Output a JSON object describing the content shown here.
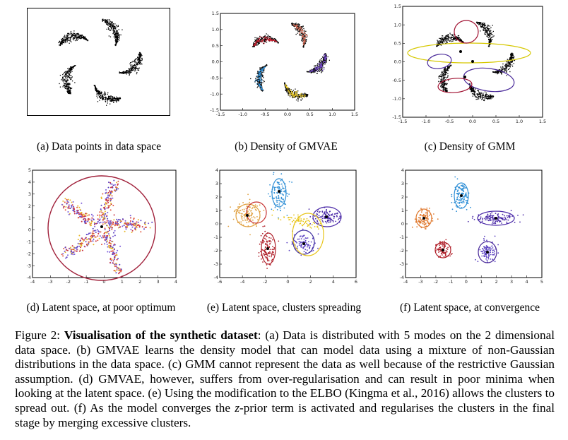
{
  "panels": [
    {
      "id": "a",
      "caption": "(a) Data points in data space"
    },
    {
      "id": "b",
      "caption": "(b) Density of GMVAE"
    },
    {
      "id": "c",
      "caption": "(c) Density of GMM"
    },
    {
      "id": "d",
      "caption": "(d) Latent space, at poor optimum"
    },
    {
      "id": "e",
      "caption": "(e) Latent space, clusters spreading"
    },
    {
      "id": "f",
      "caption": "(f) Latent space, at convergence"
    }
  ],
  "ticks": {
    "b_x": [
      "-1.5",
      "-1.0",
      "-0.5",
      "0.0",
      "0.5",
      "1.0",
      "1.5"
    ],
    "b_y": [
      "1.5",
      "1.0",
      "0.5",
      "0.0",
      "-0.5",
      "-1.0",
      "-1.5"
    ],
    "c_x": [
      "-1.5",
      "-1.0",
      "-0.5",
      "0.0",
      "0.5",
      "1.0",
      "1.5"
    ],
    "c_y": [
      "1.5",
      "1.0",
      "0.5",
      "0.0",
      "-0.5",
      "-1.0",
      "-1.5"
    ],
    "d_x": [
      "-4",
      "-3",
      "-2",
      "-1",
      "0",
      "1",
      "2",
      "3",
      "4"
    ],
    "d_y": [
      "5",
      "4",
      "3",
      "2",
      "1",
      "0",
      "-1",
      "-2",
      "-3",
      "-4"
    ],
    "e_x": [
      "-6",
      "-4",
      "-2",
      "0",
      "2",
      "4",
      "6"
    ],
    "e_y": [
      "4",
      "3",
      "2",
      "1",
      "0",
      "-1",
      "-2",
      "-3",
      "-4"
    ],
    "f_x": [
      "-4",
      "-3",
      "-2",
      "-1",
      "0",
      "1",
      "2",
      "3",
      "4",
      "5"
    ],
    "f_y": [
      "4",
      "3",
      "2",
      "1",
      "0",
      "-1",
      "-2",
      "-3",
      "-4"
    ]
  },
  "colors": {
    "blue": "#2f8fd6",
    "red": "#b0202a",
    "purple": "#4b2aa8",
    "orange": "#e07a30",
    "yellow": "#e8c51a",
    "gmm_yellow": "#d6c800",
    "gmm_red": "#a01030",
    "gmm_purple": "#4a2a9a"
  },
  "figure_caption": {
    "label": "Figure 2:",
    "title": "Visualisation of the synthetic dataset",
    "part1": ": (a) Data is distributed with 5 modes on the 2 dimensional data space. (b) GMVAE learns the density model that can model data using a mixture of non-Gaussian distributions in the data space. (c) GMM cannot represent the data as well because of the restrictive Gaussian assumption. (d) GMVAE, however, suffers from over-regularisation and can result in poor minima when looking at the latent space. (e) Using the modification to the ELBO (Kingma et al., 2016) allows the clusters to spread out. (f) As the model converges the ",
    "zvar": "z",
    "part2": "-prior term is activated and regularises the clusters in the final stage by merging excessive clusters."
  }
}
